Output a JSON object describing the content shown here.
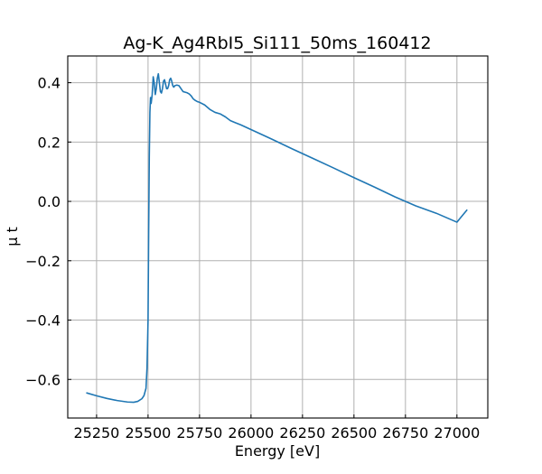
{
  "chart_data": {
    "type": "line",
    "title": "Ag-K_Ag4RbI5_Si111_50ms_160412",
    "xlabel": "Energy [eV]",
    "ylabel": "μ t",
    "xlim": [
      25110,
      27150
    ],
    "ylim": [
      -0.73,
      0.49
    ],
    "xticks": [
      25250,
      25500,
      25750,
      26000,
      26250,
      26500,
      26750,
      27000
    ],
    "xtick_labels": [
      "25250",
      "25500",
      "25750",
      "26000",
      "26250",
      "26500",
      "26750",
      "27000"
    ],
    "yticks": [
      -0.6,
      -0.4,
      -0.2,
      0.0,
      0.2,
      0.4
    ],
    "ytick_labels": [
      "−0.6",
      "−0.4",
      "−0.2",
      "0.0",
      "0.2",
      "0.4"
    ],
    "grid": true,
    "legend": "none",
    "series": [
      {
        "color": "#1f77b4",
        "x": [
          25200,
          25250,
          25300,
          25350,
          25400,
          25430,
          25450,
          25470,
          25480,
          25490,
          25495,
          25500,
          25503,
          25506,
          25509,
          25512,
          25515,
          25520,
          25525,
          25530,
          25535,
          25540,
          25545,
          25550,
          25555,
          25560,
          25565,
          25570,
          25575,
          25580,
          25585,
          25590,
          25595,
          25600,
          25605,
          25610,
          25615,
          25620,
          25625,
          25630,
          25640,
          25650,
          25660,
          25670,
          25680,
          25690,
          25700,
          25710,
          25720,
          25730,
          25740,
          25750,
          25775,
          25800,
          25825,
          25850,
          25875,
          25900,
          25925,
          25950,
          26000,
          26100,
          26200,
          26300,
          26400,
          26500,
          26600,
          26700,
          26800,
          26900,
          27000,
          27050
        ],
        "y": [
          -0.645,
          -0.655,
          -0.664,
          -0.671,
          -0.676,
          -0.677,
          -0.674,
          -0.665,
          -0.655,
          -0.63,
          -0.56,
          -0.4,
          -0.1,
          0.15,
          0.3,
          0.35,
          0.33,
          0.36,
          0.42,
          0.4,
          0.36,
          0.38,
          0.415,
          0.43,
          0.4,
          0.37,
          0.365,
          0.38,
          0.405,
          0.41,
          0.395,
          0.38,
          0.38,
          0.39,
          0.41,
          0.415,
          0.405,
          0.39,
          0.385,
          0.39,
          0.392,
          0.39,
          0.38,
          0.37,
          0.368,
          0.366,
          0.362,
          0.355,
          0.345,
          0.34,
          0.336,
          0.334,
          0.325,
          0.31,
          0.3,
          0.295,
          0.285,
          0.272,
          0.265,
          0.258,
          0.242,
          0.21,
          0.177,
          0.145,
          0.113,
          0.08,
          0.048,
          0.015,
          -0.015,
          -0.04,
          -0.07,
          -0.028
        ]
      }
    ]
  }
}
